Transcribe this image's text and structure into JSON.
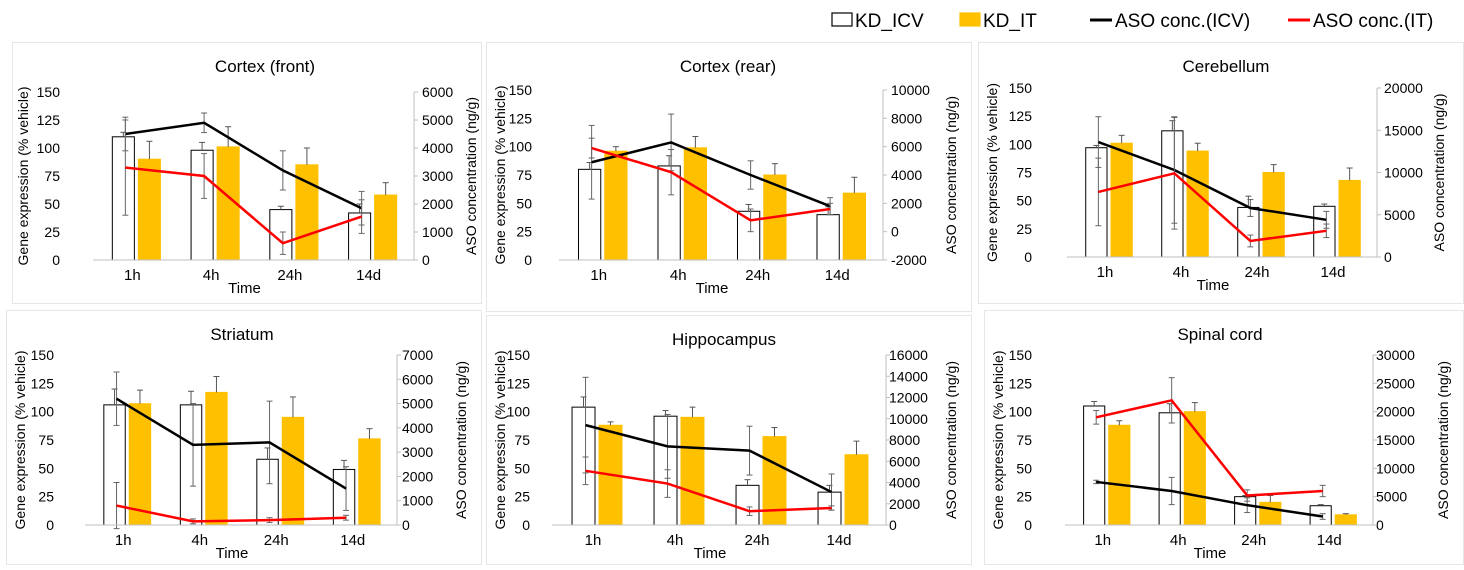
{
  "legend": [
    {
      "label": "KD_ICV",
      "kind": "bar",
      "color": "#ffffff",
      "stroke": "#000000"
    },
    {
      "label": "KD_IT",
      "kind": "bar",
      "color": "#FFC000",
      "stroke": "#FFC000"
    },
    {
      "label": "ASO conc.(ICV)",
      "kind": "line",
      "color": "#000000"
    },
    {
      "label": "ASO conc.(IT)",
      "kind": "line",
      "color": "#FF0000"
    }
  ],
  "chart_data": [
    {
      "type": "bar+line",
      "title": "Cortex (front)",
      "xlabel": "Time",
      "ylabel": "Gene  expression (% vehicle)",
      "y2label": "ASO concentration (ng/g)",
      "categories": [
        "1h",
        "4h",
        "24h",
        "14d"
      ],
      "ylim": [
        0,
        150
      ],
      "yticks": [
        0,
        25,
        50,
        75,
        100,
        125,
        150
      ],
      "y2lim": [
        0,
        6000
      ],
      "y2ticks": [
        0,
        1000,
        2000,
        3000,
        4000,
        5000,
        6000
      ],
      "bars": [
        {
          "name": "KD_ICV",
          "values": [
            110,
            98,
            45,
            42
          ],
          "err": [
            4,
            7,
            3,
            8
          ]
        },
        {
          "name": "KD_IT",
          "values": [
            90,
            101,
            85,
            58
          ],
          "err": [
            16,
            18,
            15,
            11
          ]
        }
      ],
      "lines": [
        {
          "name": "ASO conc.(ICV)",
          "values": [
            4500,
            4900,
            3200,
            1850
          ],
          "err": [
            600,
            350,
            700,
            600
          ]
        },
        {
          "name": "ASO conc.(IT)",
          "values": [
            3300,
            3000,
            600,
            1550
          ],
          "err": [
            1700,
            800,
            400,
            600
          ]
        }
      ]
    },
    {
      "type": "bar+line",
      "title": "Cortex (rear)",
      "xlabel": "Time",
      "ylabel": "Gene  expression (% vehicle)",
      "y2label": "ASO concentration (ng/g)",
      "categories": [
        "1h",
        "4h",
        "24h",
        "14d"
      ],
      "ylim": [
        0,
        150
      ],
      "yticks": [
        0,
        25,
        50,
        75,
        100,
        125,
        150
      ],
      "y2lim": [
        -2000,
        10000
      ],
      "y2ticks": [
        -2000,
        0,
        2000,
        4000,
        6000,
        8000,
        10000
      ],
      "bars": [
        {
          "name": "KD_ICV",
          "values": [
            80,
            83,
            43,
            40
          ],
          "err": [
            6,
            9,
            6,
            7
          ]
        },
        {
          "name": "KD_IT",
          "values": [
            96,
            99,
            75,
            59
          ],
          "err": [
            4,
            10,
            10,
            14
          ]
        }
      ],
      "lines": [
        {
          "name": "ASO conc.(ICV)",
          "values": [
            4900,
            6300,
            4000,
            1800
          ],
          "err": [
            2600,
            2000,
            1000,
            600
          ]
        },
        {
          "name": "ASO conc.(IT)",
          "values": [
            5900,
            4200,
            800,
            1600
          ],
          "err": [
            700,
            1600,
            800,
            400
          ]
        }
      ]
    },
    {
      "type": "bar+line",
      "title": "Cerebellum",
      "xlabel": "Time",
      "ylabel": "Gene  expression (% vehicle)",
      "y2label": "ASO concentration (ng/g)",
      "categories": [
        "1h",
        "4h",
        "24h",
        "14d"
      ],
      "ylim": [
        0,
        150
      ],
      "yticks": [
        0,
        25,
        50,
        75,
        100,
        125,
        150
      ],
      "y2lim": [
        0,
        20000
      ],
      "y2ticks": [
        0,
        5000,
        10000,
        15000,
        20000
      ],
      "bars": [
        {
          "name": "KD_ICV",
          "values": [
            97,
            112,
            44,
            45
          ],
          "err": [
            2,
            9,
            10,
            2
          ]
        },
        {
          "name": "KD_IT",
          "values": [
            101,
            94,
            75,
            68
          ],
          "err": [
            7,
            7,
            7,
            11
          ]
        }
      ],
      "lines": [
        {
          "name": "ASO conc.(ICV)",
          "values": [
            13600,
            10300,
            5800,
            4400
          ],
          "err": [
            3000,
            6300,
            1000,
            1000
          ]
        },
        {
          "name": "ASO conc.(IT)",
          "values": [
            7700,
            9900,
            1900,
            3100
          ],
          "err": [
            4000,
            6600,
            700,
            800
          ]
        }
      ]
    },
    {
      "type": "bar+line",
      "title": "Striatum",
      "xlabel": "Time",
      "ylabel": "Gene  expression (% vehicle)",
      "y2label": "ASO concentration (ng/g)",
      "categories": [
        "1h",
        "4h",
        "24h",
        "14d"
      ],
      "ylim": [
        0,
        150
      ],
      "yticks": [
        0,
        25,
        50,
        75,
        100,
        125,
        150
      ],
      "y2lim": [
        0,
        7000
      ],
      "y2ticks": [
        0,
        1000,
        2000,
        3000,
        4000,
        5000,
        6000,
        7000
      ],
      "bars": [
        {
          "name": "KD_ICV",
          "values": [
            106,
            106,
            58,
            49
          ],
          "err": [
            14,
            12,
            10,
            8
          ]
        },
        {
          "name": "KD_IT",
          "values": [
            107,
            117,
            95,
            76
          ],
          "err": [
            12,
            14,
            18,
            9
          ]
        }
      ],
      "lines": [
        {
          "name": "ASO conc.(ICV)",
          "values": [
            5200,
            3300,
            3400,
            1500
          ],
          "err": [
            1100,
            1700,
            1700,
            900
          ]
        },
        {
          "name": "ASO conc.(IT)",
          "values": [
            800,
            150,
            200,
            300
          ],
          "err": [
            950,
            100,
            100,
            100
          ]
        }
      ]
    },
    {
      "type": "bar+line",
      "title": "Hippocampus",
      "xlabel": "Time",
      "ylabel": "Gene  expression (% vehicle)",
      "y2label": "ASO concentration (ng/g)",
      "categories": [
        "1h",
        "4h",
        "24h",
        "14d"
      ],
      "ylim": [
        0,
        150
      ],
      "yticks": [
        0,
        25,
        50,
        75,
        100,
        125,
        150
      ],
      "y2lim": [
        0,
        16000
      ],
      "y2ticks": [
        0,
        2000,
        4000,
        6000,
        8000,
        10000,
        12000,
        14000,
        16000
      ],
      "bars": [
        {
          "name": "KD_ICV",
          "values": [
            104,
            96,
            35,
            29
          ],
          "err": [
            9,
            5,
            5,
            6
          ]
        },
        {
          "name": "KD_IT",
          "values": [
            88,
            95,
            78,
            62
          ],
          "err": [
            3,
            9,
            8,
            12
          ]
        }
      ],
      "lines": [
        {
          "name": "ASO conc.(ICV)",
          "values": [
            9400,
            7400,
            7000,
            3100
          ],
          "err": [
            4500,
            3000,
            2300,
            1700
          ]
        },
        {
          "name": "ASO conc.(IT)",
          "values": [
            5100,
            3900,
            1300,
            1600
          ],
          "err": [
            1300,
            1300,
            400,
            200
          ]
        }
      ]
    },
    {
      "type": "bar+line",
      "title": "Spinal cord",
      "xlabel": "Time",
      "ylabel": "Gene  expression (% vehicle)",
      "y2label": "ASO concentration (ng/g)",
      "categories": [
        "1h",
        "4h",
        "24h",
        "14d"
      ],
      "ylim": [
        0,
        150
      ],
      "yticks": [
        0,
        25,
        50,
        75,
        100,
        125,
        150
      ],
      "y2lim": [
        0,
        30000
      ],
      "y2ticks": [
        0,
        5000,
        10000,
        15000,
        20000,
        25000,
        30000
      ],
      "bars": [
        {
          "name": "KD_ICV",
          "values": [
            105,
            99,
            25,
            17
          ],
          "err": [
            4,
            8,
            1,
            1
          ]
        },
        {
          "name": "KD_IT",
          "values": [
            88,
            100,
            20,
            9
          ],
          "err": [
            4,
            8,
            6,
            1
          ]
        }
      ],
      "lines": [
        {
          "name": "ASO conc.(ICV)",
          "values": [
            7600,
            6000,
            3500,
            1500
          ],
          "err": [
            300,
            2400,
            1300,
            500
          ]
        },
        {
          "name": "ASO conc.(IT)",
          "values": [
            19000,
            22000,
            5200,
            6000
          ],
          "err": [
            1200,
            4000,
            1000,
            1000
          ]
        }
      ]
    }
  ]
}
